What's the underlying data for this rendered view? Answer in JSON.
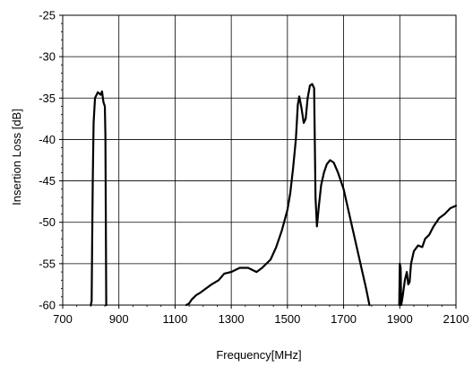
{
  "chart_data": {
    "type": "line",
    "title": "",
    "xlabel": "Frequency[MHz]",
    "ylabel": "Insertion Loss [dB]",
    "xlim": [
      700,
      2100
    ],
    "ylim": [
      -60,
      -25
    ],
    "xticks": [
      700,
      900,
      1100,
      1300,
      1500,
      1700,
      1900,
      2100
    ],
    "yticks": [
      -25,
      -30,
      -35,
      -40,
      -45,
      -50,
      -55,
      -60
    ],
    "xtick_labels": [
      "700",
      "900",
      "1100",
      "1300",
      "1500",
      "1700",
      "1900",
      "2100"
    ],
    "ytick_labels": [
      "-25",
      "-30",
      "-35",
      "-40",
      "-45",
      "-50",
      "-55",
      "-60"
    ],
    "grid": true,
    "legend": "none",
    "series": [
      {
        "color": "#000000",
        "segments": [
          [
            [
              800,
              -60
            ],
            [
              803,
              -59.5
            ],
            [
              805,
              -52
            ],
            [
              807,
              -45
            ],
            [
              810,
              -38
            ],
            [
              815,
              -35
            ],
            [
              825,
              -34.3
            ],
            [
              835,
              -34.6
            ],
            [
              840,
              -34.2
            ],
            [
              845,
              -35.5
            ],
            [
              850,
              -36
            ],
            [
              852,
              -39.5
            ],
            [
              855,
              -60
            ]
          ],
          [
            [
              1140,
              -60
            ],
            [
              1150,
              -59.8
            ],
            [
              1160,
              -59.3
            ],
            [
              1175,
              -58.8
            ],
            [
              1190,
              -58.5
            ],
            [
              1210,
              -58
            ],
            [
              1230,
              -57.5
            ],
            [
              1255,
              -57
            ],
            [
              1275,
              -56.2
            ],
            [
              1300,
              -56
            ],
            [
              1330,
              -55.5
            ],
            [
              1360,
              -55.5
            ],
            [
              1390,
              -56
            ],
            [
              1410,
              -55.5
            ],
            [
              1440,
              -54.5
            ],
            [
              1460,
              -53
            ],
            [
              1480,
              -51
            ],
            [
              1500,
              -48.5
            ],
            [
              1510,
              -46.5
            ],
            [
              1520,
              -43.5
            ],
            [
              1530,
              -40
            ],
            [
              1537,
              -35.8
            ],
            [
              1542,
              -34.8
            ],
            [
              1550,
              -36.2
            ],
            [
              1558,
              -38
            ],
            [
              1565,
              -37.5
            ],
            [
              1572,
              -35
            ],
            [
              1580,
              -33.5
            ],
            [
              1588,
              -33.3
            ],
            [
              1595,
              -33.8
            ],
            [
              1600,
              -47
            ],
            [
              1605,
              -50.5
            ],
            [
              1612,
              -48
            ],
            [
              1620,
              -45.5
            ],
            [
              1630,
              -44
            ],
            [
              1640,
              -43
            ],
            [
              1652,
              -42.5
            ],
            [
              1665,
              -42.8
            ],
            [
              1680,
              -44
            ],
            [
              1700,
              -46
            ],
            [
              1720,
              -49
            ],
            [
              1740,
              -52
            ],
            [
              1760,
              -55
            ],
            [
              1780,
              -58
            ],
            [
              1792,
              -60
            ]
          ],
          [
            [
              1898,
              -60
            ],
            [
              1900,
              -55
            ],
            [
              1903,
              -55.5
            ],
            [
              1905,
              -60
            ],
            [
              1910,
              -59
            ],
            [
              1918,
              -57
            ],
            [
              1925,
              -56
            ],
            [
              1930,
              -57.5
            ],
            [
              1935,
              -57.2
            ],
            [
              1940,
              -55
            ],
            [
              1950,
              -53.5
            ],
            [
              1965,
              -52.8
            ],
            [
              1980,
              -53
            ],
            [
              1990,
              -52
            ],
            [
              2005,
              -51.5
            ],
            [
              2020,
              -50.5
            ],
            [
              2040,
              -49.5
            ],
            [
              2060,
              -49
            ],
            [
              2080,
              -48.3
            ],
            [
              2100,
              -48
            ]
          ]
        ]
      }
    ]
  }
}
